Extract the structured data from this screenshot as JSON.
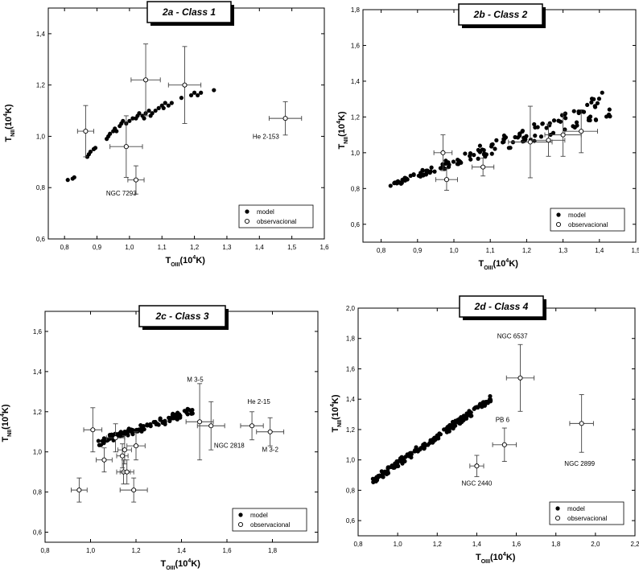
{
  "chart_data": [
    {
      "type": "scatter",
      "title": "2a - Class 1",
      "xlabel_main": "T",
      "xlabel_sub": "OIII",
      "xlabel_tail": "(10",
      "xlabel_sup": "4",
      "xlabel_end": "K)",
      "ylabel_main": "T",
      "ylabel_sub": "NII",
      "ylabel_tail": "(10",
      "ylabel_sup": "4",
      "ylabel_end": "K)",
      "xlim": [
        0.75,
        1.6
      ],
      "ylim": [
        0.6,
        1.5
      ],
      "xticks": [
        [
          "0,8",
          0.8
        ],
        [
          "0,9",
          0.9
        ],
        [
          "1,0",
          1.0
        ],
        [
          "1,1",
          1.1
        ],
        [
          "1,2",
          1.2
        ],
        [
          "1,3",
          1.3
        ],
        [
          "1,4",
          1.4
        ],
        [
          "1,5",
          1.5
        ],
        [
          "1,6",
          1.6
        ]
      ],
      "yticks": [
        [
          "0,6",
          0.6
        ],
        [
          "0,8",
          0.8
        ],
        [
          "1,0",
          1.0
        ],
        [
          "1,2",
          1.2
        ],
        [
          "1,4",
          1.4
        ]
      ],
      "legend": {
        "model": "model",
        "observational": "observacional",
        "position": "bottom-right"
      },
      "model": [
        [
          0.81,
          0.83
        ],
        [
          0.825,
          0.835
        ],
        [
          0.83,
          0.84
        ],
        [
          0.87,
          0.92
        ],
        [
          0.875,
          0.93
        ],
        [
          0.88,
          0.94
        ],
        [
          0.89,
          0.95
        ],
        [
          0.895,
          0.955
        ],
        [
          0.93,
          0.99
        ],
        [
          0.935,
          1.0
        ],
        [
          0.94,
          1.01
        ],
        [
          0.95,
          1.02
        ],
        [
          0.955,
          1.03
        ],
        [
          0.96,
          1.02
        ],
        [
          0.97,
          1.04
        ],
        [
          0.975,
          1.05
        ],
        [
          0.98,
          1.06
        ],
        [
          0.99,
          1.05
        ],
        [
          1.0,
          1.06
        ],
        [
          1.01,
          1.07
        ],
        [
          1.02,
          1.07
        ],
        [
          1.025,
          1.08
        ],
        [
          1.03,
          1.09
        ],
        [
          1.04,
          1.08
        ],
        [
          1.045,
          1.07
        ],
        [
          1.05,
          1.09
        ],
        [
          1.06,
          1.1
        ],
        [
          1.065,
          1.08
        ],
        [
          1.07,
          1.09
        ],
        [
          1.08,
          1.1
        ],
        [
          1.09,
          1.11
        ],
        [
          1.1,
          1.12
        ],
        [
          1.105,
          1.11
        ],
        [
          1.11,
          1.13
        ],
        [
          1.12,
          1.12
        ],
        [
          1.13,
          1.13
        ],
        [
          1.16,
          1.15
        ],
        [
          1.19,
          1.16
        ],
        [
          1.2,
          1.17
        ],
        [
          1.21,
          1.16
        ],
        [
          1.22,
          1.17
        ],
        [
          1.26,
          1.18
        ]
      ],
      "observed": [
        {
          "x": 0.865,
          "y": 1.02,
          "xerr": 0.025,
          "yerr": 0.1
        },
        {
          "x": 0.99,
          "y": 0.96,
          "xerr": 0.05,
          "yerr": 0.12
        },
        {
          "x": 1.02,
          "y": 0.83,
          "xerr": 0.025,
          "yerr": 0.055
        },
        {
          "x": 1.05,
          "y": 1.22,
          "xerr": 0.045,
          "yerr": 0.14
        },
        {
          "x": 1.17,
          "y": 1.2,
          "xerr": 0.05,
          "yerr": 0.15
        },
        {
          "x": 1.48,
          "y": 1.07,
          "xerr": 0.05,
          "yerr": 0.065
        }
      ],
      "labels": [
        {
          "text": "NGC 7293",
          "x": 0.975,
          "y": 0.77
        },
        {
          "text": "He 2-153",
          "x": 1.42,
          "y": 0.99
        }
      ]
    },
    {
      "type": "scatter",
      "title": "2b - Class 2",
      "xlabel_main": "T",
      "xlabel_sub": "OIII",
      "xlabel_tail": "(10",
      "xlabel_sup": "4",
      "xlabel_end": "K)",
      "ylabel_main": "T",
      "ylabel_sub": "NII",
      "ylabel_tail": "(10",
      "ylabel_sup": "4",
      "ylabel_end": "K)",
      "xlim": [
        0.75,
        1.5
      ],
      "ylim": [
        0.5,
        1.8
      ],
      "xticks": [
        [
          "0,8",
          0.8
        ],
        [
          "0,9",
          0.9
        ],
        [
          "1,0",
          1.0
        ],
        [
          "1,1",
          1.1
        ],
        [
          "1,2",
          1.2
        ],
        [
          "1,3",
          1.3
        ],
        [
          "1,4",
          1.4
        ],
        [
          "1,5",
          1.5
        ]
      ],
      "yticks": [
        [
          "0,6",
          0.6
        ],
        [
          "0,8",
          0.8
        ],
        [
          "1,0",
          1.0
        ],
        [
          "1,2",
          1.2
        ],
        [
          "1,4",
          1.4
        ],
        [
          "1,6",
          1.6
        ],
        [
          "1,8",
          1.8
        ]
      ],
      "legend": {
        "model": "model",
        "observational": "observacional",
        "position": "bottom-right"
      },
      "model_band": {
        "x0": 0.82,
        "x1": 1.43,
        "y_lo": [
          0.81,
          1.2
        ],
        "y_hi": [
          0.82,
          1.35
        ],
        "n": 150
      },
      "observed": [
        {
          "x": 0.97,
          "y": 1.0,
          "xerr": 0.025,
          "yerr": 0.1
        },
        {
          "x": 0.98,
          "y": 0.85,
          "xerr": 0.03,
          "yerr": 0.06
        },
        {
          "x": 1.08,
          "y": 0.92,
          "xerr": 0.03,
          "yerr": 0.05
        },
        {
          "x": 1.21,
          "y": 1.06,
          "xerr": 0.06,
          "yerr": 0.2
        },
        {
          "x": 1.26,
          "y": 1.07,
          "xerr": 0.045,
          "yerr": 0.09
        },
        {
          "x": 1.3,
          "y": 1.1,
          "xerr": 0.05,
          "yerr": 0.12
        },
        {
          "x": 1.35,
          "y": 1.12,
          "xerr": 0.045,
          "yerr": 0.12
        }
      ],
      "labels": []
    },
    {
      "type": "scatter",
      "title": "2c - Class 3",
      "xlabel_main": "T",
      "xlabel_sub": "OIII",
      "xlabel_tail": "(10",
      "xlabel_sup": "4",
      "xlabel_end": "K)",
      "ylabel_main": "T",
      "ylabel_sub": "NII",
      "ylabel_tail": "(10",
      "ylabel_sup": "4",
      "ylabel_end": "K)",
      "xlim": [
        0.8,
        2.0
      ],
      "ylim": [
        0.55,
        1.7
      ],
      "xticks": [
        [
          "0,8",
          0.8
        ],
        [
          "1,0",
          1.0
        ],
        [
          "1,2",
          1.2
        ],
        [
          "1,4",
          1.4
        ],
        [
          "1,6",
          1.6
        ],
        [
          "1,8",
          1.8
        ]
      ],
      "yticks": [
        [
          "0,6",
          0.6
        ],
        [
          "0,8",
          0.8
        ],
        [
          "1,0",
          1.0
        ],
        [
          "1,2",
          1.2
        ],
        [
          "1,4",
          1.4
        ],
        [
          "1,6",
          1.6
        ]
      ],
      "legend": {
        "model": "model",
        "observational": "observacional",
        "position": "bottom-right"
      },
      "model_band": {
        "x0": 1.03,
        "x1": 1.45,
        "y_lo": [
          1.03,
          1.19
        ],
        "y_hi": [
          1.06,
          1.22
        ],
        "n": 120
      },
      "observed": [
        {
          "x": 0.95,
          "y": 0.81,
          "xerr": 0.035,
          "yerr": 0.06
        },
        {
          "x": 1.01,
          "y": 1.11,
          "xerr": 0.04,
          "yerr": 0.11
        },
        {
          "x": 1.06,
          "y": 0.96,
          "xerr": 0.035,
          "yerr": 0.06
        },
        {
          "x": 1.11,
          "y": 1.07,
          "xerr": 0.04,
          "yerr": 0.07
        },
        {
          "x": 1.14,
          "y": 0.98,
          "xerr": 0.025,
          "yerr": 0.06
        },
        {
          "x": 1.145,
          "y": 0.9,
          "xerr": 0.03,
          "yerr": 0.06
        },
        {
          "x": 1.15,
          "y": 1.01,
          "xerr": 0.03,
          "yerr": 0.07
        },
        {
          "x": 1.16,
          "y": 0.9,
          "xerr": 0.03,
          "yerr": 0.06
        },
        {
          "x": 1.19,
          "y": 0.81,
          "xerr": 0.06,
          "yerr": 0.06
        },
        {
          "x": 1.2,
          "y": 1.03,
          "xerr": 0.04,
          "yerr": 0.07
        },
        {
          "x": 1.48,
          "y": 1.15,
          "xerr": 0.06,
          "yerr": 0.19
        },
        {
          "x": 1.53,
          "y": 1.13,
          "xerr": 0.06,
          "yerr": 0.12
        },
        {
          "x": 1.71,
          "y": 1.13,
          "xerr": 0.05,
          "yerr": 0.07
        },
        {
          "x": 1.79,
          "y": 1.1,
          "xerr": 0.06,
          "yerr": 0.07
        }
      ],
      "labels": [
        {
          "text": "M 3-5",
          "x": 1.46,
          "y": 1.35
        },
        {
          "text": "He 2-15",
          "x": 1.74,
          "y": 1.24
        },
        {
          "text": "NGC 2818",
          "x": 1.61,
          "y": 1.02
        },
        {
          "text": "M 3-2",
          "x": 1.79,
          "y": 1.0
        }
      ]
    },
    {
      "type": "scatter",
      "title": "2d - Class 4",
      "xlabel_main": "T",
      "xlabel_sub": "OIII",
      "xlabel_tail": "(10",
      "xlabel_sup": "4",
      "xlabel_end": "K)",
      "ylabel_main": "T",
      "ylabel_sub": "NII",
      "ylabel_tail": "(10",
      "ylabel_sup": "4",
      "ylabel_end": "K)",
      "xlim": [
        0.8,
        2.2
      ],
      "ylim": [
        0.5,
        2.0
      ],
      "xticks": [
        [
          "0,8",
          0.8
        ],
        [
          "1,0",
          1.0
        ],
        [
          "1,2",
          1.2
        ],
        [
          "1,4",
          1.4
        ],
        [
          "1,6",
          1.6
        ],
        [
          "1,8",
          1.8
        ],
        [
          "2,0",
          2.0
        ],
        [
          "2,2",
          2.2
        ]
      ],
      "yticks": [
        [
          "0,6",
          0.6
        ],
        [
          "0,8",
          0.8
        ],
        [
          "1,0",
          1.0
        ],
        [
          "1,2",
          1.2
        ],
        [
          "1,4",
          1.4
        ],
        [
          "1,6",
          1.6
        ],
        [
          "1,8",
          1.8
        ],
        [
          "2,0",
          2.0
        ]
      ],
      "legend": {
        "model": "model",
        "observational": "observacional",
        "position": "bottom-right"
      },
      "model_band": {
        "x0": 0.87,
        "x1": 1.47,
        "y_lo": [
          0.84,
          1.38
        ],
        "y_hi": [
          0.88,
          1.42
        ],
        "n": 180
      },
      "observed": [
        {
          "x": 1.4,
          "y": 0.96,
          "xerr": 0.035,
          "yerr": 0.07
        },
        {
          "x": 1.54,
          "y": 1.1,
          "xerr": 0.06,
          "yerr": 0.11
        },
        {
          "x": 1.62,
          "y": 1.54,
          "xerr": 0.07,
          "yerr": 0.22
        },
        {
          "x": 1.93,
          "y": 1.24,
          "xerr": 0.06,
          "yerr": 0.19
        }
      ],
      "labels": [
        {
          "text": "NGC 6537",
          "x": 1.58,
          "y": 1.8
        },
        {
          "text": "PB 6",
          "x": 1.53,
          "y": 1.25
        },
        {
          "text": "NGC 2440",
          "x": 1.4,
          "y": 0.83
        },
        {
          "text": "NGC 2899",
          "x": 1.92,
          "y": 0.96
        }
      ]
    }
  ]
}
